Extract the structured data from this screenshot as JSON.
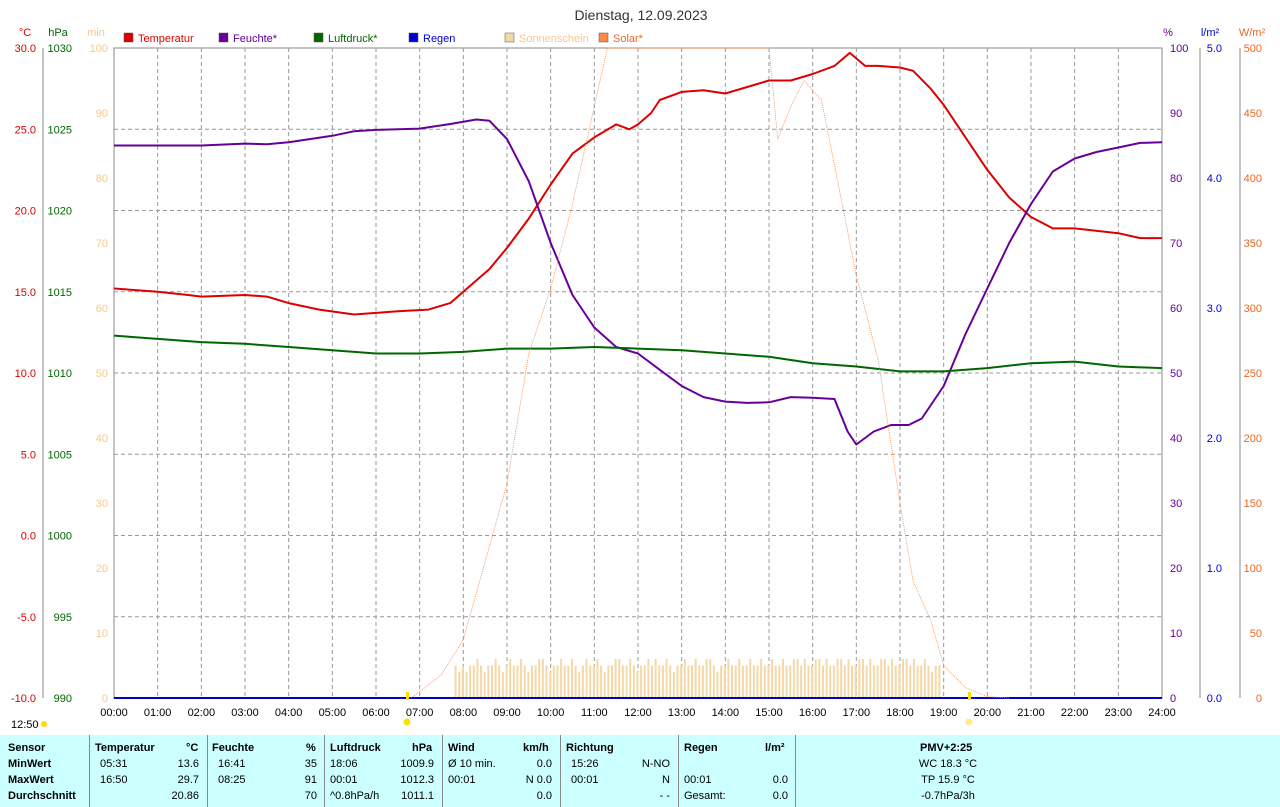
{
  "title": "Dienstag, 12.09.2023",
  "time_label": "12:50",
  "axes": {
    "temp_unit": "°C",
    "press_unit": "hPa",
    "sun_unit": "min",
    "hum_unit": "%",
    "rain_unit": "l/m²",
    "solar_unit": "W/m²"
  },
  "legend": [
    {
      "label": "Temperatur",
      "color": "#dd0000",
      "text_color": "#dd0000"
    },
    {
      "label": "Feuchte*",
      "color": "#660099",
      "text_color": "#660099"
    },
    {
      "label": "Luftdruck*",
      "color": "#006600",
      "text_color": "#006600"
    },
    {
      "label": "Regen",
      "color": "#0000cc",
      "text_color": "#0000cc"
    },
    {
      "label": "Sonnenschein",
      "color": "#f5d8a8",
      "text_color": "#f8c890"
    },
    {
      "label": "Solar*",
      "color": "#ff8844",
      "text_color": "#ee6622"
    }
  ],
  "chart_data": {
    "type": "line",
    "x_ticks": [
      "00:00",
      "01:00",
      "02:00",
      "03:00",
      "04:00",
      "05:00",
      "06:00",
      "07:00",
      "08:00",
      "09:00",
      "10:00",
      "11:00",
      "12:00",
      "13:00",
      "14:00",
      "15:00",
      "16:00",
      "17:00",
      "18:00",
      "19:00",
      "20:00",
      "21:00",
      "22:00",
      "23:00",
      "24:00"
    ],
    "temp_ticks": [
      "30.0",
      "25.0",
      "20.0",
      "15.0",
      "10.0",
      "5.0",
      "0.0",
      "-5.0",
      "-10.0"
    ],
    "press_ticks": [
      "1030",
      "1025",
      "1020",
      "1015",
      "1010",
      "1005",
      "1000",
      "995",
      "990"
    ],
    "sun_ticks": [
      "100",
      "90",
      "80",
      "70",
      "60",
      "50",
      "40",
      "30",
      "20",
      "10",
      "0"
    ],
    "hum_ticks": [
      "100",
      "90",
      "80",
      "70",
      "60",
      "50",
      "40",
      "30",
      "20",
      "10",
      "0"
    ],
    "rain_ticks": [
      "5.0",
      "4.0",
      "3.0",
      "2.0",
      "1.0",
      "0.0"
    ],
    "solar_ticks": [
      "500",
      "450",
      "400",
      "350",
      "300",
      "250",
      "200",
      "150",
      "100",
      "50",
      "0"
    ],
    "series": [
      {
        "name": "Temperatur",
        "color": "#dd0000",
        "axis": "temp",
        "ylim": [
          -10,
          30
        ],
        "points": [
          [
            0,
            15.2
          ],
          [
            1,
            15.0
          ],
          [
            1.7,
            14.8
          ],
          [
            2,
            14.7
          ],
          [
            3,
            14.8
          ],
          [
            3.5,
            14.7
          ],
          [
            4,
            14.3
          ],
          [
            4.7,
            13.9
          ],
          [
            5.5,
            13.6
          ],
          [
            6,
            13.7
          ],
          [
            6.5,
            13.8
          ],
          [
            7.2,
            13.9
          ],
          [
            7.7,
            14.3
          ],
          [
            8,
            15.0
          ],
          [
            8.6,
            16.4
          ],
          [
            9,
            17.7
          ],
          [
            9.5,
            19.5
          ],
          [
            10,
            21.6
          ],
          [
            10.5,
            23.5
          ],
          [
            11,
            24.5
          ],
          [
            11.5,
            25.3
          ],
          [
            11.8,
            25.0
          ],
          [
            12,
            25.3
          ],
          [
            12.3,
            26.0
          ],
          [
            12.5,
            26.8
          ],
          [
            13,
            27.3
          ],
          [
            13.5,
            27.4
          ],
          [
            14,
            27.2
          ],
          [
            14.5,
            27.6
          ],
          [
            15,
            28.0
          ],
          [
            15.5,
            28.0
          ],
          [
            16,
            28.4
          ],
          [
            16.5,
            28.9
          ],
          [
            16.85,
            29.7
          ],
          [
            17.2,
            28.9
          ],
          [
            17.5,
            28.9
          ],
          [
            18,
            28.8
          ],
          [
            18.3,
            28.6
          ],
          [
            18.7,
            27.5
          ],
          [
            19,
            26.5
          ],
          [
            19.5,
            24.5
          ],
          [
            20,
            22.5
          ],
          [
            20.5,
            20.8
          ],
          [
            21,
            19.6
          ],
          [
            21.5,
            18.9
          ],
          [
            22,
            18.9
          ],
          [
            23,
            18.6
          ],
          [
            23.5,
            18.3
          ],
          [
            24,
            18.3
          ]
        ]
      },
      {
        "name": "Feuchte*",
        "color": "#660099",
        "axis": "hum",
        "ylim": [
          0,
          100
        ],
        "points": [
          [
            0,
            85
          ],
          [
            1.5,
            85
          ],
          [
            2,
            85
          ],
          [
            3,
            85.3
          ],
          [
            3.5,
            85.2
          ],
          [
            4,
            85.5
          ],
          [
            5,
            86.5
          ],
          [
            5.5,
            87.2
          ],
          [
            6,
            87.4
          ],
          [
            7,
            87.6
          ],
          [
            7.7,
            88.3
          ],
          [
            8.3,
            89
          ],
          [
            8.6,
            88.8
          ],
          [
            9,
            86
          ],
          [
            9.5,
            79.5
          ],
          [
            10,
            70
          ],
          [
            10.5,
            62
          ],
          [
            11,
            57
          ],
          [
            11.5,
            54
          ],
          [
            12,
            53
          ],
          [
            12.5,
            50.5
          ],
          [
            13,
            48
          ],
          [
            13.5,
            46.3
          ],
          [
            14,
            45.6
          ],
          [
            14.5,
            45.4
          ],
          [
            15,
            45.5
          ],
          [
            15.5,
            46.3
          ],
          [
            16,
            46.2
          ],
          [
            16.5,
            46
          ],
          [
            16.8,
            41
          ],
          [
            17,
            39
          ],
          [
            17.4,
            41
          ],
          [
            17.8,
            42
          ],
          [
            18.2,
            42
          ],
          [
            18.5,
            43
          ],
          [
            19,
            48
          ],
          [
            19.5,
            56
          ],
          [
            20,
            63
          ],
          [
            20.5,
            70
          ],
          [
            21,
            76
          ],
          [
            21.5,
            81
          ],
          [
            22,
            83
          ],
          [
            22.5,
            84
          ],
          [
            23,
            84.7
          ],
          [
            23.5,
            85.4
          ],
          [
            24,
            85.5
          ]
        ]
      },
      {
        "name": "Luftdruck*",
        "color": "#006600",
        "axis": "press",
        "ylim": [
          990,
          1030
        ],
        "points": [
          [
            0,
            1012.3
          ],
          [
            1,
            1012.1
          ],
          [
            2,
            1011.9
          ],
          [
            3,
            1011.8
          ],
          [
            4,
            1011.6
          ],
          [
            5,
            1011.4
          ],
          [
            6,
            1011.2
          ],
          [
            7,
            1011.2
          ],
          [
            8,
            1011.3
          ],
          [
            9,
            1011.5
          ],
          [
            10,
            1011.5
          ],
          [
            11,
            1011.6
          ],
          [
            12,
            1011.5
          ],
          [
            13,
            1011.4
          ],
          [
            14,
            1011.2
          ],
          [
            15,
            1011.0
          ],
          [
            16,
            1010.6
          ],
          [
            17,
            1010.4
          ],
          [
            18,
            1010.1
          ],
          [
            19,
            1010.1
          ],
          [
            20,
            1010.3
          ],
          [
            21,
            1010.6
          ],
          [
            22,
            1010.7
          ],
          [
            23,
            1010.4
          ],
          [
            24,
            1010.3
          ]
        ]
      },
      {
        "name": "Regen",
        "color": "#0000cc",
        "axis": "rain",
        "ylim": [
          0,
          5
        ],
        "points": [
          [
            0,
            0
          ],
          [
            24,
            0
          ]
        ]
      },
      {
        "name": "Solar*",
        "color": "#ff8844",
        "axis": "solar",
        "ylim": [
          0,
          500
        ],
        "points": [
          [
            6.8,
            0
          ],
          [
            7,
            5
          ],
          [
            7.5,
            18
          ],
          [
            8,
            45
          ],
          [
            8.5,
            105
          ],
          [
            9,
            165
          ],
          [
            9.5,
            265
          ],
          [
            10,
            315
          ],
          [
            10.5,
            380
          ],
          [
            11,
            455
          ],
          [
            11.3,
            500
          ],
          [
            15.0,
            500
          ],
          [
            15.2,
            430
          ],
          [
            15.5,
            455
          ],
          [
            15.8,
            475
          ],
          [
            16.2,
            460
          ],
          [
            16.5,
            410
          ],
          [
            17,
            325
          ],
          [
            17.5,
            260
          ],
          [
            18,
            150
          ],
          [
            18.3,
            90
          ],
          [
            18.7,
            60
          ],
          [
            19,
            25
          ],
          [
            19.5,
            8
          ],
          [
            20,
            1
          ],
          [
            20.5,
            0
          ]
        ]
      }
    ],
    "sunshine_bars": {
      "name": "Sonnenschein",
      "color": "#f5d8a8",
      "axis": "sun",
      "ylim": [
        0,
        100
      ],
      "start_hour": 7.8,
      "end_hour": 18.9,
      "step_hours": 0.0833,
      "values": [
        5,
        4,
        5,
        4,
        5,
        5,
        6,
        5,
        4,
        5,
        5,
        6,
        5,
        4,
        5,
        6,
        5,
        5,
        6,
        5,
        4,
        5,
        5,
        6,
        6,
        5,
        4,
        5,
        5,
        6,
        5,
        5,
        6,
        5,
        4,
        5,
        6,
        5,
        5,
        6,
        5,
        4,
        5,
        5,
        6,
        6,
        5,
        5,
        6,
        5,
        4,
        5,
        5,
        6,
        5,
        6,
        5,
        5,
        6,
        5,
        4,
        5,
        5,
        6,
        5,
        5,
        6,
        5,
        5,
        6,
        6,
        5,
        4,
        5,
        5,
        6,
        5,
        5,
        6,
        5,
        5,
        6,
        5,
        5,
        6,
        5,
        5,
        6,
        5,
        5,
        6,
        5,
        5,
        6,
        6,
        5,
        6,
        5,
        5,
        6,
        6,
        5,
        6,
        5,
        5,
        6,
        6,
        5,
        6,
        5,
        5,
        6,
        6,
        5,
        6,
        5,
        5,
        6,
        6,
        5,
        6,
        5,
        5,
        6,
        6,
        5,
        6,
        5,
        5,
        6,
        5,
        4,
        5,
        5,
        6,
        6,
        5,
        6,
        5,
        5
      ]
    },
    "xlim": [
      0,
      24
    ]
  },
  "summary": {
    "headers": {
      "sensor": "Sensor",
      "temp": "Temperatur",
      "temp_unit": "°C",
      "hum": "Feuchte",
      "hum_unit": "%",
      "press": "Luftdruck",
      "press_unit": "hPa",
      "wind": "Wind",
      "wind_unit": "km/h",
      "dir": "Richtung",
      "rain": "Regen",
      "rain_unit": "l/m²",
      "pmv": "PMV+2:25"
    },
    "rows": [
      {
        "label": "MinWert",
        "temp_time": "05:31",
        "temp_val": "13.6",
        "hum_time": "16:41",
        "hum_val": "35",
        "press_time": "18:06",
        "press_val": "1009.9",
        "wind_time": "Ø 10 min.",
        "wind_val": "0.0",
        "dir_time": "15:26",
        "dir_val": "N-NO",
        "rain_time": "",
        "rain_val": "",
        "extra": "WC 18.3 °C"
      },
      {
        "label": "MaxWert",
        "temp_time": "16:50",
        "temp_val": "29.7",
        "hum_time": "08:25",
        "hum_val": "91",
        "press_time": "00:01",
        "press_val": "1012.3",
        "wind_time": "00:01",
        "wind_val": "N 0.0",
        "dir_time": "00:01",
        "dir_val": "N",
        "rain_time": "00:01",
        "rain_val": "0.0",
        "extra": "TP 15.9 °C"
      },
      {
        "label": "Durchschnitt",
        "temp_time": "",
        "temp_val": "20.86",
        "hum_time": "",
        "hum_val": "70",
        "press_time": "^0.8hPa/h",
        "press_val": "1011.1",
        "wind_time": "",
        "wind_val": "0.0",
        "dir_time": "",
        "dir_val": "- -",
        "rain_time": "Gesamt:",
        "rain_val": "0.0",
        "extra": "-0.7hPa/3h"
      }
    ]
  }
}
